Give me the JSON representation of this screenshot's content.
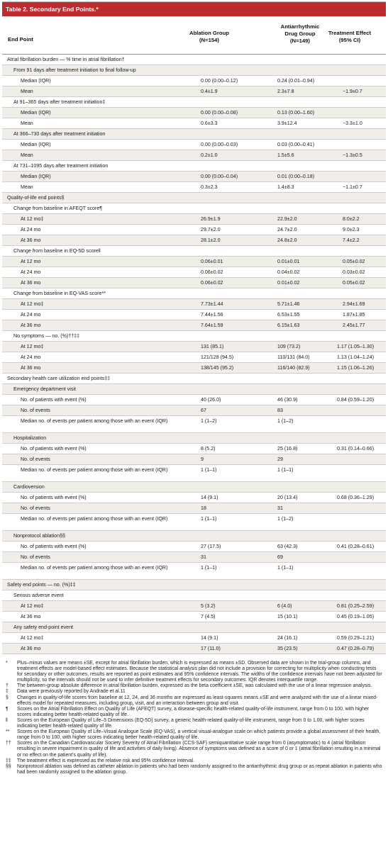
{
  "title": "Table 2. Secondary End Points.*",
  "columns": {
    "endpoint": "End Point",
    "ablation": [
      "Ablation Group",
      "(N=154)"
    ],
    "drug": [
      "Antiarrhythmic",
      "Drug Group",
      "(N=149)"
    ],
    "effect": [
      "Treatment Effect",
      "(95% CI)"
    ]
  },
  "rows": [
    {
      "label": "Atrial fibrillation burden — % time in atrial fibrillation†",
      "indent": 0,
      "shade": false,
      "h": 15,
      "ab": "",
      "ad": "",
      "te": ""
    },
    {
      "label": "From 91 days after treatment initiation to final follow-up",
      "indent": 1,
      "shade": true,
      "h": 15,
      "ab": "",
      "ad": "",
      "te": ""
    },
    {
      "label": "Median (IQR)",
      "indent": 2,
      "shade": false,
      "h": 15,
      "ab": "0.00 (0.00–0.12)",
      "ad": "0.24 (0.01–0.94)",
      "te": ""
    },
    {
      "label": "Mean",
      "indent": 2,
      "shade": true,
      "h": 15,
      "ab": "0.4±1.9",
      "ad": "2.3±7.8",
      "te": "−1.9±0.7"
    },
    {
      "label": "At 91–365 days after treatment initiation‡",
      "indent": 1,
      "shade": false,
      "h": 15,
      "ab": "",
      "ad": "",
      "te": ""
    },
    {
      "label": "Median (IQR)",
      "indent": 2,
      "shade": true,
      "h": 15,
      "ab": "0.00 (0.00–0.08)",
      "ad": "0.13 (0.00–1.60)",
      "te": ""
    },
    {
      "label": "Mean",
      "indent": 2,
      "shade": false,
      "h": 15,
      "ab": "0.6±3.3",
      "ad": "3.9±12.4",
      "te": "−3.3±1.0"
    },
    {
      "label": "At 366–730 days after treatment initiation",
      "indent": 1,
      "shade": true,
      "h": 15,
      "ab": "",
      "ad": "",
      "te": ""
    },
    {
      "label": "Median (IQR)",
      "indent": 2,
      "shade": false,
      "h": 15,
      "ab": "0.00 (0.00–0.03)",
      "ad": "0.03 (0.00–0.41)",
      "te": ""
    },
    {
      "label": "Mean",
      "indent": 2,
      "shade": true,
      "h": 15,
      "ab": "0.2±1.0",
      "ad": "1.5±5.6",
      "te": "−1.3±0.5"
    },
    {
      "label": "At 731–1095 days after treatment initiation",
      "indent": 1,
      "shade": false,
      "h": 15,
      "ab": "",
      "ad": "",
      "te": ""
    },
    {
      "label": "Median (IQR)",
      "indent": 2,
      "shade": true,
      "h": 15,
      "ab": "0.00 (0.00–0.04)",
      "ad": "0.01 (0.00–0.18)",
      "te": ""
    },
    {
      "label": "Mean",
      "indent": 2,
      "shade": false,
      "h": 15,
      "ab": "0.3±2.3",
      "ad": "1.4±8.3",
      "te": "−1.1±0.7"
    },
    {
      "label": "Quality-of-life end points§",
      "indent": 0,
      "shade": true,
      "h": 15,
      "ab": "",
      "ad": "",
      "te": ""
    },
    {
      "label": "Change from baseline in AFEQT score¶",
      "indent": 1,
      "shade": false,
      "h": 15,
      "ab": "",
      "ad": "",
      "te": ""
    },
    {
      "label": "At 12 mo‡",
      "indent": 2,
      "shade": true,
      "h": 15,
      "ab": "26.9±1.9",
      "ad": "22.9±2.0",
      "te": "8.0±2.2"
    },
    {
      "label": "At 24 mo",
      "indent": 2,
      "shade": false,
      "h": 15,
      "ab": "29.7±2.0",
      "ad": "24.7±2.0",
      "te": "9.0±2.3"
    },
    {
      "label": "At 36 mo",
      "indent": 2,
      "shade": true,
      "h": 15,
      "ab": "28.1±2.0",
      "ad": "24.8±2.0",
      "te": "7.4±2.2"
    },
    {
      "label": "Change from baseline in EQ-5D score‖",
      "indent": 1,
      "shade": false,
      "h": 15,
      "ab": "",
      "ad": "",
      "te": ""
    },
    {
      "label": "At 12 mo",
      "indent": 2,
      "shade": true,
      "h": 15,
      "ab": "0.06±0.01",
      "ad": "0.01±0.01",
      "te": "0.05±0.02"
    },
    {
      "label": "At 24 mo",
      "indent": 2,
      "shade": false,
      "h": 15,
      "ab": "0.06±0.02",
      "ad": "0.04±0.02",
      "te": "0.03±0.02"
    },
    {
      "label": "At 36 mo",
      "indent": 2,
      "shade": true,
      "h": 15,
      "ab": "0.06±0.02",
      "ad": "0.01±0.02",
      "te": "0.05±0.02"
    },
    {
      "label": "Change from baseline in EQ-VAS score**",
      "indent": 1,
      "shade": false,
      "h": 15,
      "ab": "",
      "ad": "",
      "te": ""
    },
    {
      "label": "At 12 mo‡",
      "indent": 2,
      "shade": true,
      "h": 15,
      "ab": "7.73±1.44",
      "ad": "5.71±1.46",
      "te": "2.94±1.69"
    },
    {
      "label": "At 24 mo",
      "indent": 2,
      "shade": false,
      "h": 15,
      "ab": "7.44±1.56",
      "ad": "6.53±1.55",
      "te": "1.87±1.85"
    },
    {
      "label": "At 36 mo",
      "indent": 2,
      "shade": true,
      "h": 15,
      "ab": "7.64±1.59",
      "ad": "6.15±1.63",
      "te": "2.45±1.77"
    },
    {
      "label": "No symptoms — no. (%)††‡‡",
      "indent": 1,
      "shade": false,
      "h": 15,
      "ab": "",
      "ad": "",
      "te": ""
    },
    {
      "label": "At 12 mo‡",
      "indent": 2,
      "shade": true,
      "h": 15,
      "ab": "131 (85.1)",
      "ad": "109 (73.2)",
      "te": "1.17 (1.05–1.30)"
    },
    {
      "label": "At 24 mo",
      "indent": 2,
      "shade": false,
      "h": 15,
      "ab": "121/128 (94.5)",
      "ad": "110/131 (84.0)",
      "te": "1.13 (1.04–1.24)"
    },
    {
      "label": "At 36 mo",
      "indent": 2,
      "shade": true,
      "h": 15,
      "ab": "138/145 (95.2)",
      "ad": "116/140 (82.9)",
      "te": "1.15 (1.06–1.26)"
    },
    {
      "label": "Secondary health care utilization end points‡‡",
      "indent": 0,
      "shade": false,
      "h": 15,
      "ab": "",
      "ad": "",
      "te": ""
    },
    {
      "label": "Emergency department visit",
      "indent": 1,
      "shade": true,
      "h": 15,
      "ab": "",
      "ad": "",
      "te": ""
    },
    {
      "label": "No. of patients with event (%)",
      "indent": 2,
      "shade": false,
      "h": 15,
      "ab": "40 (26.0)",
      "ad": "46 (30.9)",
      "te": "0.84 (0.59–1.20)"
    },
    {
      "label": "No. of events",
      "indent": 2,
      "shade": true,
      "h": 15,
      "ab": "67",
      "ad": "83",
      "te": ""
    },
    {
      "label": "Median no. of events per patient among those with an event (IQR)",
      "indent": 2,
      "shade": false,
      "h": 24,
      "ab": "1 (1–2)",
      "ad": "1 (1–2)",
      "te": ""
    },
    {
      "label": "Hospitalization",
      "indent": 1,
      "shade": true,
      "h": 15,
      "ab": "",
      "ad": "",
      "te": ""
    },
    {
      "label": "No. of patients with event (%)",
      "indent": 2,
      "shade": false,
      "h": 15,
      "ab": "8 (5.2)",
      "ad": "25 (16.8)",
      "te": "0.31 (0.14–0.66)"
    },
    {
      "label": "No. of events",
      "indent": 2,
      "shade": true,
      "h": 15,
      "ab": "9",
      "ad": "29",
      "te": ""
    },
    {
      "label": "Median no. of events per patient among those with an event (IQR)",
      "indent": 2,
      "shade": false,
      "h": 24,
      "ab": "1 (1–1)",
      "ad": "1 (1–1)",
      "te": ""
    },
    {
      "label": "Cardioversion",
      "indent": 1,
      "shade": true,
      "h": 15,
      "ab": "",
      "ad": "",
      "te": ""
    },
    {
      "label": "No. of patients with event (%)",
      "indent": 2,
      "shade": false,
      "h": 15,
      "ab": "14 (9.1)",
      "ad": "20 (13.4)",
      "te": "0.68 (0.36–1.29)"
    },
    {
      "label": "No. of events",
      "indent": 2,
      "shade": true,
      "h": 15,
      "ab": "18",
      "ad": "31",
      "te": ""
    },
    {
      "label": "Median no. of events per patient among those with an event (IQR)",
      "indent": 2,
      "shade": false,
      "h": 24,
      "ab": "1 (1–1)",
      "ad": "1 (1–2)",
      "te": ""
    },
    {
      "label": "Nonprotocol ablation§§",
      "indent": 1,
      "shade": true,
      "h": 15,
      "ab": "",
      "ad": "",
      "te": ""
    },
    {
      "label": "No. of patients with event (%)",
      "indent": 2,
      "shade": false,
      "h": 15,
      "ab": "27 (17.5)",
      "ad": "63 (42.3)",
      "te": "0.41 (0.28–0.61)"
    },
    {
      "label": "No. of events",
      "indent": 2,
      "shade": true,
      "h": 15,
      "ab": "31",
      "ad": "69",
      "te": ""
    },
    {
      "label": "Median no. of events per patient among those with an event (IQR)",
      "indent": 2,
      "shade": false,
      "h": 24,
      "ab": "1 (1–1)",
      "ad": "1 (1–1)",
      "te": ""
    },
    {
      "label": "Safety end points — no. (%)‡‡",
      "indent": 0,
      "shade": true,
      "h": 15,
      "ab": "",
      "ad": "",
      "te": ""
    },
    {
      "label": "Serious adverse event",
      "indent": 1,
      "shade": false,
      "h": 15,
      "ab": "",
      "ad": "",
      "te": ""
    },
    {
      "label": "At 12 mo‡",
      "indent": 2,
      "shade": true,
      "h": 15,
      "ab": "5 (3.2)",
      "ad": "6 (4.0)",
      "te": "0.81 (0.25–2.59)"
    },
    {
      "label": "At 36 mo",
      "indent": 2,
      "shade": false,
      "h": 15,
      "ab": "7 (4.5)",
      "ad": "15 (10.1)",
      "te": "0.45 (0.19–1.05)"
    },
    {
      "label": "Any safety end-point event",
      "indent": 1,
      "shade": true,
      "h": 15,
      "ab": "",
      "ad": "",
      "te": ""
    },
    {
      "label": "At 12 mo‡",
      "indent": 2,
      "shade": false,
      "h": 15,
      "ab": "14 (9.1)",
      "ad": "24 (16.1)",
      "te": "0.59 (0.29–1.21)"
    },
    {
      "label": "At 36 mo",
      "indent": 2,
      "shade": true,
      "h": 15,
      "ab": "17 (11.0)",
      "ad": "35 (23.5)",
      "te": "0.47 (0.28–0.79)"
    }
  ],
  "footnotes": [
    {
      "sym": "*",
      "text": "Plus–minus values are means ±SE, except for atrial fibrillation burden, which is expressed as means ±SD. Observed data are shown in the trial-group columns, and treatment effects are model-based effect estimates. Because the statistical analysis plan did not include a provision for correcting for multiplicity when conducting tests for secondary or other outcomes, results are reported as point estimates and 95% confidence intervals. The widths of the confidence intervals have not been adjusted for multiplicity, so the intervals should not be used to infer definitive treatment effects for secondary outcomes. IQR denotes interquartile range."
    },
    {
      "sym": "†",
      "text": "The between-group absolute difference in atrial fibrillation burden, expressed as the beta coefficient ±SE, was calculated with the use of a linear regression analysis."
    },
    {
      "sym": "‡",
      "text": "Data were previously reported by Andrade et al.11"
    },
    {
      "sym": "§",
      "text": "Changes in quality-of-life scores from baseline at 12, 24, and 36 months are expressed as least-squares means ±SE and were analyzed with the use of a linear mixed-effects model for repeated measures, including group, visit, and an interaction between group and visit."
    },
    {
      "sym": "¶",
      "text": "Scores on the Atrial Fibrillation Effect on Quality of Life (AFEQT) survey, a disease-specific health-related quality-of-life instrument, range from 0 to 100, with higher scores indicating better health-related quality of life."
    },
    {
      "sym": "‖",
      "text": "Scores on the European Quality of Life–5 Dimensions (EQ-5D) survey, a generic health-related quality-of-life instrument, range from 0 to 1.00, with higher scores indicating better health-related quality of life."
    },
    {
      "sym": "**",
      "text": "Scores on the European Quality of Life–Visual Analogue Scale (EQ-VAS), a vertical visual-analogue scale on which patients provide a global assessment of their health, range from 0 to 100, with higher scores indicating better health-related quality of life."
    },
    {
      "sym": "††",
      "text": "Scores on the Canadian Cardiovascular Society Severity of Atrial Fibrillation (CCS-SAF) semiquantitative scale range from 0 (asymptomatic) to 4 (atrial fibrillation resulting in severe impairment in quality of life and activities of daily living). Absence of symptoms was defined as a score of 0 or 1 (atrial fibrillation resulting in a minimal or no effect on the patient’s quality of life)."
    },
    {
      "sym": "‡‡",
      "text": "The treatment effect is expressed as the relative risk and 95% confidence interval."
    },
    {
      "sym": "§§",
      "text": "Nonprotocol ablation was defined as catheter ablation in patients who had been randomly assigned to the antiarrhythmic drug group or as repeat ablation in patients who had been randomly assigned to the ablation group."
    }
  ]
}
